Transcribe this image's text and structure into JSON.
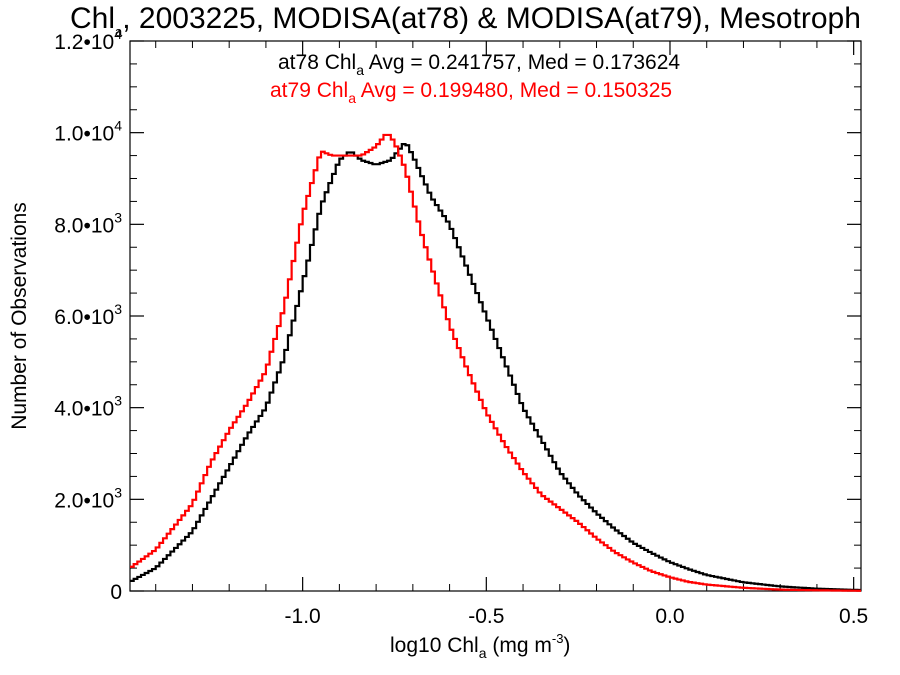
{
  "chart_data": {
    "type": "line",
    "title": {
      "pre": "Chl",
      "sub": "a",
      "post": ", 2003225, MODISA(at78) & MODISA(at79), Mesotroph"
    },
    "xlabel": {
      "pre": "log10 Chl",
      "sub": "a",
      "mid": " (mg m",
      "sup": "-3",
      "post": ")"
    },
    "ylabel": "Number of Observations",
    "xlim": [
      -1.47,
      0.52
    ],
    "ylim": [
      0,
      12000
    ],
    "x_ticks": [
      {
        "value": -1.0,
        "label": "-1.0"
      },
      {
        "value": -0.5,
        "label": "-0.5"
      },
      {
        "value": 0.0,
        "label": "0.0"
      },
      {
        "value": 0.5,
        "label": "0.5"
      }
    ],
    "y_ticks": [
      {
        "value": 0,
        "base": "0",
        "exp": ""
      },
      {
        "value": 2000,
        "base": "2.0•10",
        "exp": "3"
      },
      {
        "value": 4000,
        "base": "4.0•10",
        "exp": "3"
      },
      {
        "value": 6000,
        "base": "6.0•10",
        "exp": "3"
      },
      {
        "value": 8000,
        "base": "8.0•10",
        "exp": "3"
      },
      {
        "value": 10000,
        "base": "1.0•10",
        "exp": "4"
      },
      {
        "value": 12000,
        "base": "1.2•10",
        "exp": "4"
      }
    ],
    "grid": false,
    "annotations": [
      {
        "pre": "at78 Chl",
        "sub": "a",
        "post": " Avg = 0.241757, Med = 0.173624",
        "color": "#000000"
      },
      {
        "pre": "at79 Chl",
        "sub": "a",
        "post": " Avg = 0.199480, Med = 0.150325",
        "color": "#ff0000"
      }
    ],
    "series": [
      {
        "name": "at78",
        "color": "#000000",
        "x": [
          -1.47,
          -1.4,
          -1.3,
          -1.2,
          -1.15,
          -1.1,
          -1.05,
          -1.0,
          -0.95,
          -0.9,
          -0.87,
          -0.84,
          -0.8,
          -0.76,
          -0.72,
          -0.7,
          -0.65,
          -0.6,
          -0.55,
          -0.5,
          -0.45,
          -0.4,
          -0.35,
          -0.3,
          -0.25,
          -0.2,
          -0.15,
          -0.1,
          -0.05,
          0.0,
          0.05,
          0.1,
          0.2,
          0.3,
          0.4,
          0.52
        ],
        "values": [
          200,
          500,
          1300,
          2700,
          3400,
          4000,
          5100,
          6700,
          8400,
          9400,
          9600,
          9400,
          9300,
          9400,
          9800,
          9500,
          8600,
          8000,
          7000,
          6000,
          5000,
          4000,
          3300,
          2600,
          2100,
          1700,
          1350,
          1050,
          830,
          630,
          480,
          350,
          190,
          100,
          50,
          20
        ]
      },
      {
        "name": "at79",
        "color": "#ff0000",
        "x": [
          -1.47,
          -1.4,
          -1.3,
          -1.25,
          -1.2,
          -1.15,
          -1.1,
          -1.05,
          -1.0,
          -0.95,
          -0.92,
          -0.88,
          -0.84,
          -0.8,
          -0.77,
          -0.75,
          -0.72,
          -0.68,
          -0.65,
          -0.6,
          -0.55,
          -0.5,
          -0.45,
          -0.4,
          -0.35,
          -0.3,
          -0.25,
          -0.2,
          -0.15,
          -0.1,
          -0.05,
          0.0,
          0.05,
          0.1,
          0.2,
          0.3,
          0.4,
          0.52
        ],
        "values": [
          500,
          900,
          1900,
          2800,
          3500,
          4100,
          4800,
          6200,
          8200,
          9600,
          9500,
          9500,
          9500,
          9700,
          10000,
          9800,
          9200,
          7900,
          7100,
          5800,
          4800,
          3900,
          3200,
          2600,
          2100,
          1800,
          1500,
          1150,
          850,
          620,
          430,
          300,
          200,
          140,
          70,
          30,
          15,
          5
        ]
      }
    ]
  }
}
